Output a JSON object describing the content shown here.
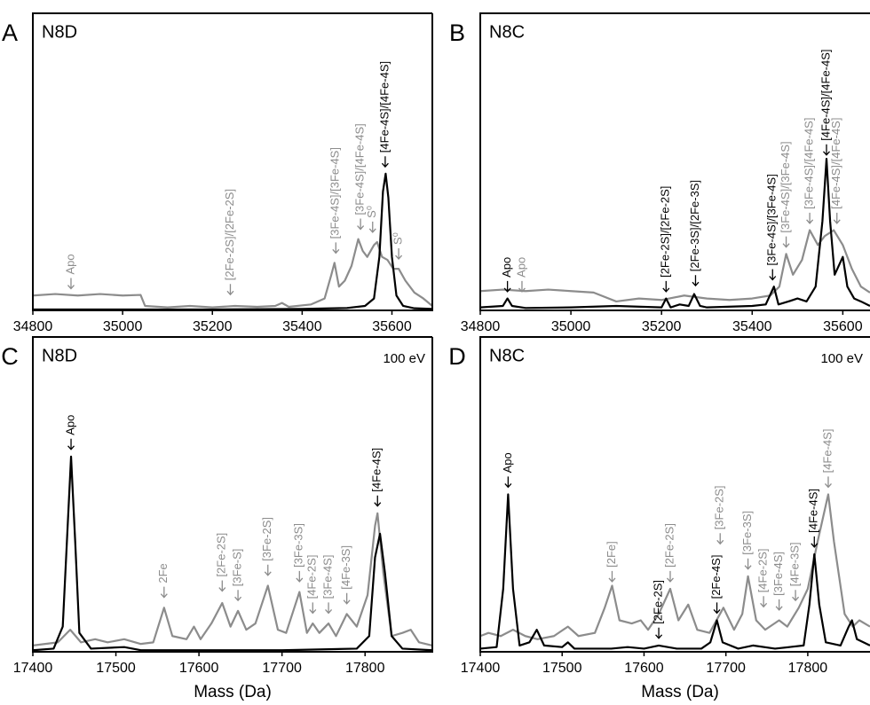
{
  "chart_data": [
    {
      "type": "line",
      "panel": "A",
      "title": "N8D",
      "xlim": [
        34800,
        35690
      ],
      "xticks": [
        34800,
        35000,
        35200,
        35400,
        35600
      ],
      "ylim": [
        0,
        100
      ],
      "series": [
        {
          "color": "#8c8c8c",
          "x": [
            34800,
            34850,
            34900,
            34950,
            35000,
            35040,
            35050,
            35100,
            35150,
            35200,
            35250,
            35300,
            35340,
            35355,
            35370,
            35420,
            35450,
            35465,
            35472,
            35482,
            35495,
            35510,
            35525,
            35535,
            35545,
            35560,
            35567,
            35578,
            35590,
            35603,
            35615,
            35630,
            35650,
            35670,
            35690
          ],
          "values": [
            5,
            5.5,
            5,
            5.5,
            5,
            5.2,
            1.5,
            1,
            1.5,
            1,
            1.5,
            1.2,
            1.5,
            2.5,
            1.2,
            2,
            4,
            12,
            16,
            8,
            10,
            15,
            24,
            20,
            18,
            22,
            23,
            18,
            17,
            14,
            14,
            10,
            6,
            4,
            1.5
          ]
        },
        {
          "color": "#000000",
          "x": [
            34800,
            35000,
            35200,
            35400,
            35500,
            35540,
            35560,
            35572,
            35580,
            35586,
            35592,
            35600,
            35610,
            35625,
            35650,
            35690
          ],
          "values": [
            0.3,
            0.3,
            0.3,
            0.5,
            0.8,
            1.5,
            4,
            18,
            40,
            46,
            38,
            18,
            5,
            1.5,
            0.7,
            0.5
          ]
        }
      ],
      "annotations": [
        {
          "text": "Apo",
          "x": 34885,
          "y": 7,
          "color": "#8c8c8c"
        },
        {
          "text": "[2Fe-2S]/[2Fe-2S]",
          "x": 35240,
          "y": 5,
          "color": "#8c8c8c"
        },
        {
          "text": "[3Fe-4S]/[3Fe-4S]",
          "x": 35475,
          "y": 19,
          "color": "#8c8c8c"
        },
        {
          "text": "[3Fe-4S]/[4Fe-4S]",
          "x": 35530,
          "y": 27,
          "color": "#8c8c8c"
        },
        {
          "text": "S⁰",
          "x": 35557,
          "y": 26,
          "color": "#8c8c8c"
        },
        {
          "text": "[4Fe-4S]/[4Fe-4S]",
          "x": 35585,
          "y": 48,
          "color": "#000000"
        },
        {
          "text": "S⁰",
          "x": 35615,
          "y": 17,
          "color": "#8c8c8c"
        }
      ]
    },
    {
      "type": "line",
      "panel": "B",
      "title": "N8C",
      "xlim": [
        34800,
        35660
      ],
      "xticks": [
        34800,
        35000,
        35200,
        35400,
        35600
      ],
      "ylim": [
        0,
        100
      ],
      "series": [
        {
          "color": "#8c8c8c",
          "x": [
            34800,
            34850,
            34900,
            34950,
            35000,
            35050,
            35100,
            35150,
            35200,
            35250,
            35300,
            35350,
            35400,
            35440,
            35460,
            35475,
            35490,
            35510,
            35527,
            35545,
            35560,
            35580,
            35600,
            35620,
            35640,
            35660
          ],
          "values": [
            6.5,
            7,
            6.5,
            7,
            6.5,
            6,
            3,
            4,
            3.5,
            5,
            4,
            3.5,
            4,
            5,
            8,
            19,
            12,
            17,
            27,
            22,
            25,
            27,
            22,
            14,
            8,
            6
          ]
        },
        {
          "color": "#000000",
          "x": [
            34800,
            34850,
            34860,
            34870,
            34900,
            35000,
            35100,
            35200,
            35210,
            35220,
            35240,
            35260,
            35272,
            35285,
            35300,
            35400,
            35430,
            35448,
            35458,
            35480,
            35500,
            35520,
            35540,
            35555,
            35564,
            35572,
            35582,
            35600,
            35610,
            35625,
            35640,
            35660
          ],
          "values": [
            1,
            1.5,
            4,
            1.5,
            0.8,
            1,
            1.5,
            1,
            4,
            1,
            2,
            1.5,
            5.5,
            1.5,
            1,
            1.5,
            2,
            8,
            2,
            3,
            4,
            3,
            8,
            30,
            51,
            30,
            12,
            18,
            8,
            4,
            3,
            1.5
          ]
        }
      ],
      "annotations": [
        {
          "text": "Apo",
          "x": 34860,
          "y": 6,
          "color": "#000000"
        },
        {
          "text": "Apo",
          "x": 34892,
          "y": 6,
          "color": "#8c8c8c"
        },
        {
          "text": "[2Fe-2S]/[2Fe-2S]",
          "x": 35210,
          "y": 6,
          "color": "#000000"
        },
        {
          "text": "[2Fe-3S]/[2Fe-3S]",
          "x": 35275,
          "y": 8,
          "color": "#000000"
        },
        {
          "text": "[3Fe-4S]/[3Fe-4S]",
          "x": 35445,
          "y": 10,
          "color": "#000000"
        },
        {
          "text": "[3Fe-4S]/[3Fe-4S]",
          "x": 35475,
          "y": 21,
          "color": "#8c8c8c"
        },
        {
          "text": "[3Fe-4S]/[4Fe-4S]",
          "x": 35527,
          "y": 29,
          "color": "#8c8c8c"
        },
        {
          "text": "[4Fe-4S]/[4Fe-4S]",
          "x": 35564,
          "y": 52,
          "color": "#000000"
        },
        {
          "text": "[4Fe-4S]/[4Fe-4S]",
          "x": 35587,
          "y": 29,
          "color": "#8c8c8c"
        }
      ]
    },
    {
      "type": "line",
      "panel": "C",
      "title": "N8D",
      "subtitle": "100 eV",
      "x_label": "Mass (Da)",
      "xlim": [
        17400,
        17881
      ],
      "xticks": [
        17400,
        17500,
        17600,
        17700,
        17800
      ],
      "ylim": [
        0,
        100
      ],
      "series": [
        {
          "color": "#8c8c8c",
          "x": [
            17400,
            17430,
            17445,
            17458,
            17475,
            17490,
            17510,
            17530,
            17545,
            17558,
            17568,
            17585,
            17594,
            17602,
            17615,
            17628,
            17638,
            17647,
            17657,
            17668,
            17683,
            17695,
            17705,
            17721,
            17730,
            17737,
            17745,
            17756,
            17765,
            17778,
            17790,
            17803,
            17812,
            17815,
            17822,
            17832,
            17845,
            17855,
            17865,
            17881
          ],
          "values": [
            2,
            3,
            7,
            3,
            4,
            3,
            4,
            2.5,
            3,
            14,
            5,
            4,
            8,
            4,
            9,
            15.5,
            8,
            13,
            7,
            9,
            21,
            7,
            6,
            19,
            6,
            9,
            6,
            9,
            5,
            12,
            8,
            18,
            40,
            44,
            25,
            5,
            6,
            7,
            3,
            2
          ]
        },
        {
          "color": "#000000",
          "x": [
            17400,
            17425,
            17436,
            17441,
            17446,
            17451,
            17456,
            17470,
            17510,
            17530,
            17700,
            17790,
            17805,
            17812,
            17818,
            17824,
            17832,
            17845,
            17881
          ],
          "values": [
            0.5,
            1,
            8,
            35,
            62,
            35,
            6,
            1,
            1.5,
            0.5,
            0.5,
            1,
            5,
            30,
            37.5,
            25,
            5,
            1,
            0.5
          ]
        }
      ],
      "annotations": [
        {
          "text": "Apo",
          "x": 17446,
          "y": 64,
          "color": "#000000"
        },
        {
          "text": "2Fe",
          "x": 17558,
          "y": 17,
          "color": "#8c8c8c"
        },
        {
          "text": "[2Fe-2S]",
          "x": 17628,
          "y": 19,
          "color": "#8c8c8c"
        },
        {
          "text": "[3Fe-S]",
          "x": 17647,
          "y": 16,
          "color": "#8c8c8c"
        },
        {
          "text": "[3Fe-2S]",
          "x": 17683,
          "y": 24,
          "color": "#8c8c8c"
        },
        {
          "text": "[3Fe-3S]",
          "x": 17721,
          "y": 22,
          "color": "#8c8c8c"
        },
        {
          "text": "[4Fe-2S]",
          "x": 17737,
          "y": 12,
          "color": "#8c8c8c"
        },
        {
          "text": "[3Fe-4S]",
          "x": 17756,
          "y": 12,
          "color": "#8c8c8c"
        },
        {
          "text": "[4Fe-3S]",
          "x": 17778,
          "y": 15,
          "color": "#8c8c8c"
        },
        {
          "text": "[4Fe-4S]",
          "x": 17815,
          "y": 46,
          "color": "#000000"
        }
      ]
    },
    {
      "type": "line",
      "panel": "D",
      "title": "N8C",
      "subtitle": "100 eV",
      "x_label": "Mass (Da)",
      "xlim": [
        17400,
        17876
      ],
      "xticks": [
        17400,
        17500,
        17600,
        17700,
        17800
      ],
      "ylim": [
        0,
        100
      ],
      "series": [
        {
          "color": "#8c8c8c",
          "x": [
            17400,
            17410,
            17425,
            17440,
            17455,
            17470,
            17490,
            17507,
            17520,
            17540,
            17552,
            17561,
            17570,
            17585,
            17596,
            17605,
            17618,
            17632,
            17642,
            17654,
            17665,
            17680,
            17697,
            17710,
            17720,
            17727,
            17737,
            17748,
            17765,
            17775,
            17789,
            17800,
            17812,
            17825,
            17832,
            17845,
            17855,
            17863,
            17876
          ],
          "values": [
            5,
            6,
            5,
            7,
            5,
            4,
            5,
            8,
            5,
            6,
            14,
            21,
            10,
            9,
            10,
            7,
            12,
            20,
            10,
            15,
            7,
            6,
            14,
            7,
            12,
            24,
            10,
            7,
            10,
            8,
            14,
            20,
            35,
            50,
            35,
            12,
            8,
            10,
            8
          ]
        },
        {
          "color": "#000000",
          "x": [
            17400,
            17420,
            17428,
            17434,
            17440,
            17448,
            17460,
            17469,
            17478,
            17500,
            17507,
            17515,
            17560,
            17580,
            17600,
            17618,
            17640,
            17670,
            17681,
            17689,
            17696,
            17715,
            17733,
            17760,
            17795,
            17802,
            17808,
            17814,
            17822,
            17840,
            17850,
            17854,
            17860,
            17876
          ],
          "values": [
            1,
            1.5,
            20,
            50,
            20,
            2,
            3,
            7,
            2,
            1.5,
            3,
            1,
            1,
            1.5,
            1,
            2,
            1,
            1,
            3,
            10,
            3,
            1,
            2,
            1,
            2,
            15,
            31,
            15,
            3,
            2,
            8,
            10,
            4,
            2
          ]
        }
      ],
      "annotations": [
        {
          "text": "Apo",
          "x": 17434,
          "y": 52,
          "color": "#000000"
        },
        {
          "text": "[2Fe]",
          "x": 17561,
          "y": 22,
          "color": "#8c8c8c"
        },
        {
          "text": "[2Fe-2S]",
          "x": 17618,
          "y": 4,
          "color": "#000000"
        },
        {
          "text": "[2Fe-2S]",
          "x": 17632,
          "y": 22,
          "color": "#8c8c8c"
        },
        {
          "text": "[2Fe-4S]",
          "x": 17689,
          "y": 12,
          "color": "#000000"
        },
        {
          "text": "[3Fe-2S]",
          "x": 17693,
          "y": 34,
          "color": "#8c8c8c"
        },
        {
          "text": "[3Fe-3S]",
          "x": 17727,
          "y": 26,
          "color": "#8c8c8c"
        },
        {
          "text": "[4Fe-2S]",
          "x": 17746,
          "y": 14,
          "color": "#8c8c8c"
        },
        {
          "text": "[3Fe-4S]",
          "x": 17765,
          "y": 13,
          "color": "#8c8c8c"
        },
        {
          "text": "[4Fe-3S]",
          "x": 17785,
          "y": 16,
          "color": "#8c8c8c"
        },
        {
          "text": "[4Fe-4S]",
          "x": 17808,
          "y": 33,
          "color": "#000000"
        },
        {
          "text": "[4Fe-4S]",
          "x": 17825,
          "y": 52,
          "color": "#8c8c8c"
        }
      ]
    }
  ]
}
